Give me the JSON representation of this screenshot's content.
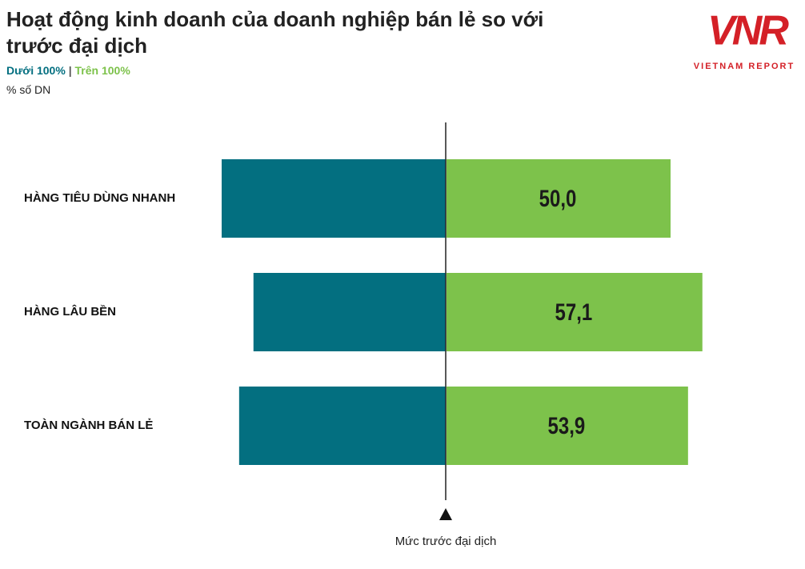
{
  "chart_data": {
    "type": "bar",
    "title": "Hoạt động kinh doanh của doanh nghiệp bán lẻ so với trước đại dịch",
    "subtitle": "% số DN",
    "categories": [
      "HÀNG TIÊU DÙNG NHANH",
      "HÀNG LÂU BỀN",
      "TOÀN NGÀNH BÁN LẺ"
    ],
    "series": [
      {
        "name": "Dưới 100%",
        "color": "#036f80",
        "values": [
          50.0,
          42.9,
          46.1
        ]
      },
      {
        "name": "Trên 100%",
        "color": "#7dc24b",
        "values": [
          50.0,
          57.1,
          53.9
        ],
        "value_labels": [
          "50,0",
          "57,1",
          "53,9"
        ]
      }
    ],
    "x_label": "Mức trước đại dịch"
  },
  "logo": {
    "mark": "VNR",
    "text": "VIETNAM REPORT"
  }
}
